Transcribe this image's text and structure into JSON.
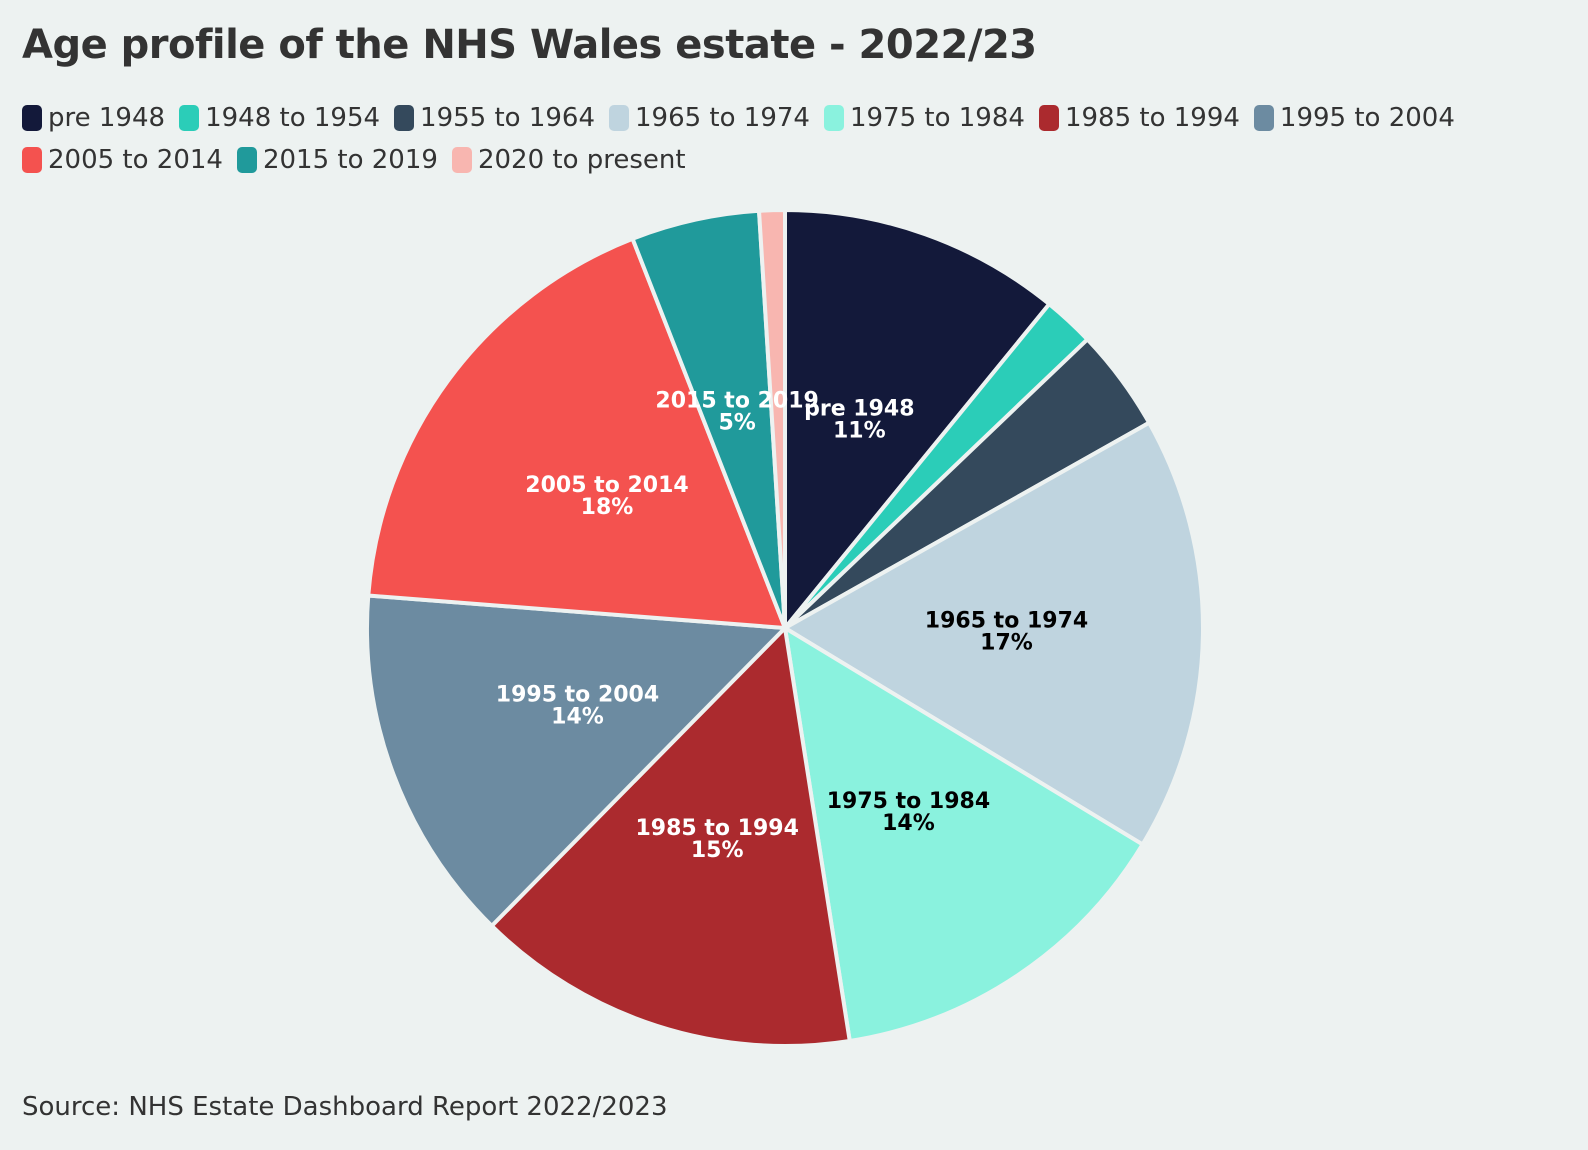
{
  "title": "Age profile of the NHS Wales estate - 2022/23",
  "source": "Source: NHS Estate Dashboard Report 2022/2023",
  "chart_data": {
    "type": "pie",
    "title": "Age profile of the NHS Wales estate - 2022/23",
    "legend_position": "top",
    "categories": [
      "pre 1948",
      "1948 to 1954",
      "1955 to 1964",
      "1965 to 1974",
      "1975 to 1984",
      "1985 to 1994",
      "1995 to 2004",
      "2005 to 2014",
      "2015 to 2019",
      "2020 to present"
    ],
    "values": [
      11,
      2,
      4,
      17,
      14,
      15,
      14,
      18,
      5,
      1
    ],
    "value_labels": [
      "11%",
      "2%",
      "4%",
      "17%",
      "14%",
      "15%",
      "14%",
      "18%",
      "5%",
      "1%"
    ],
    "show_label": [
      true,
      false,
      false,
      true,
      true,
      true,
      true,
      true,
      true,
      false
    ],
    "colors": [
      "#13193a",
      "#2bcdb8",
      "#34495c",
      "#bfd4df",
      "#8af2de",
      "#ab2a2e",
      "#6c8ba1",
      "#f4524f",
      "#209a9b",
      "#f8b6b0"
    ],
    "label_colors": [
      "#ffffff",
      "#000000",
      "#ffffff",
      "#000000",
      "#000000",
      "#ffffff",
      "#ffffff",
      "#ffffff",
      "#ffffff",
      "#000000"
    ]
  }
}
